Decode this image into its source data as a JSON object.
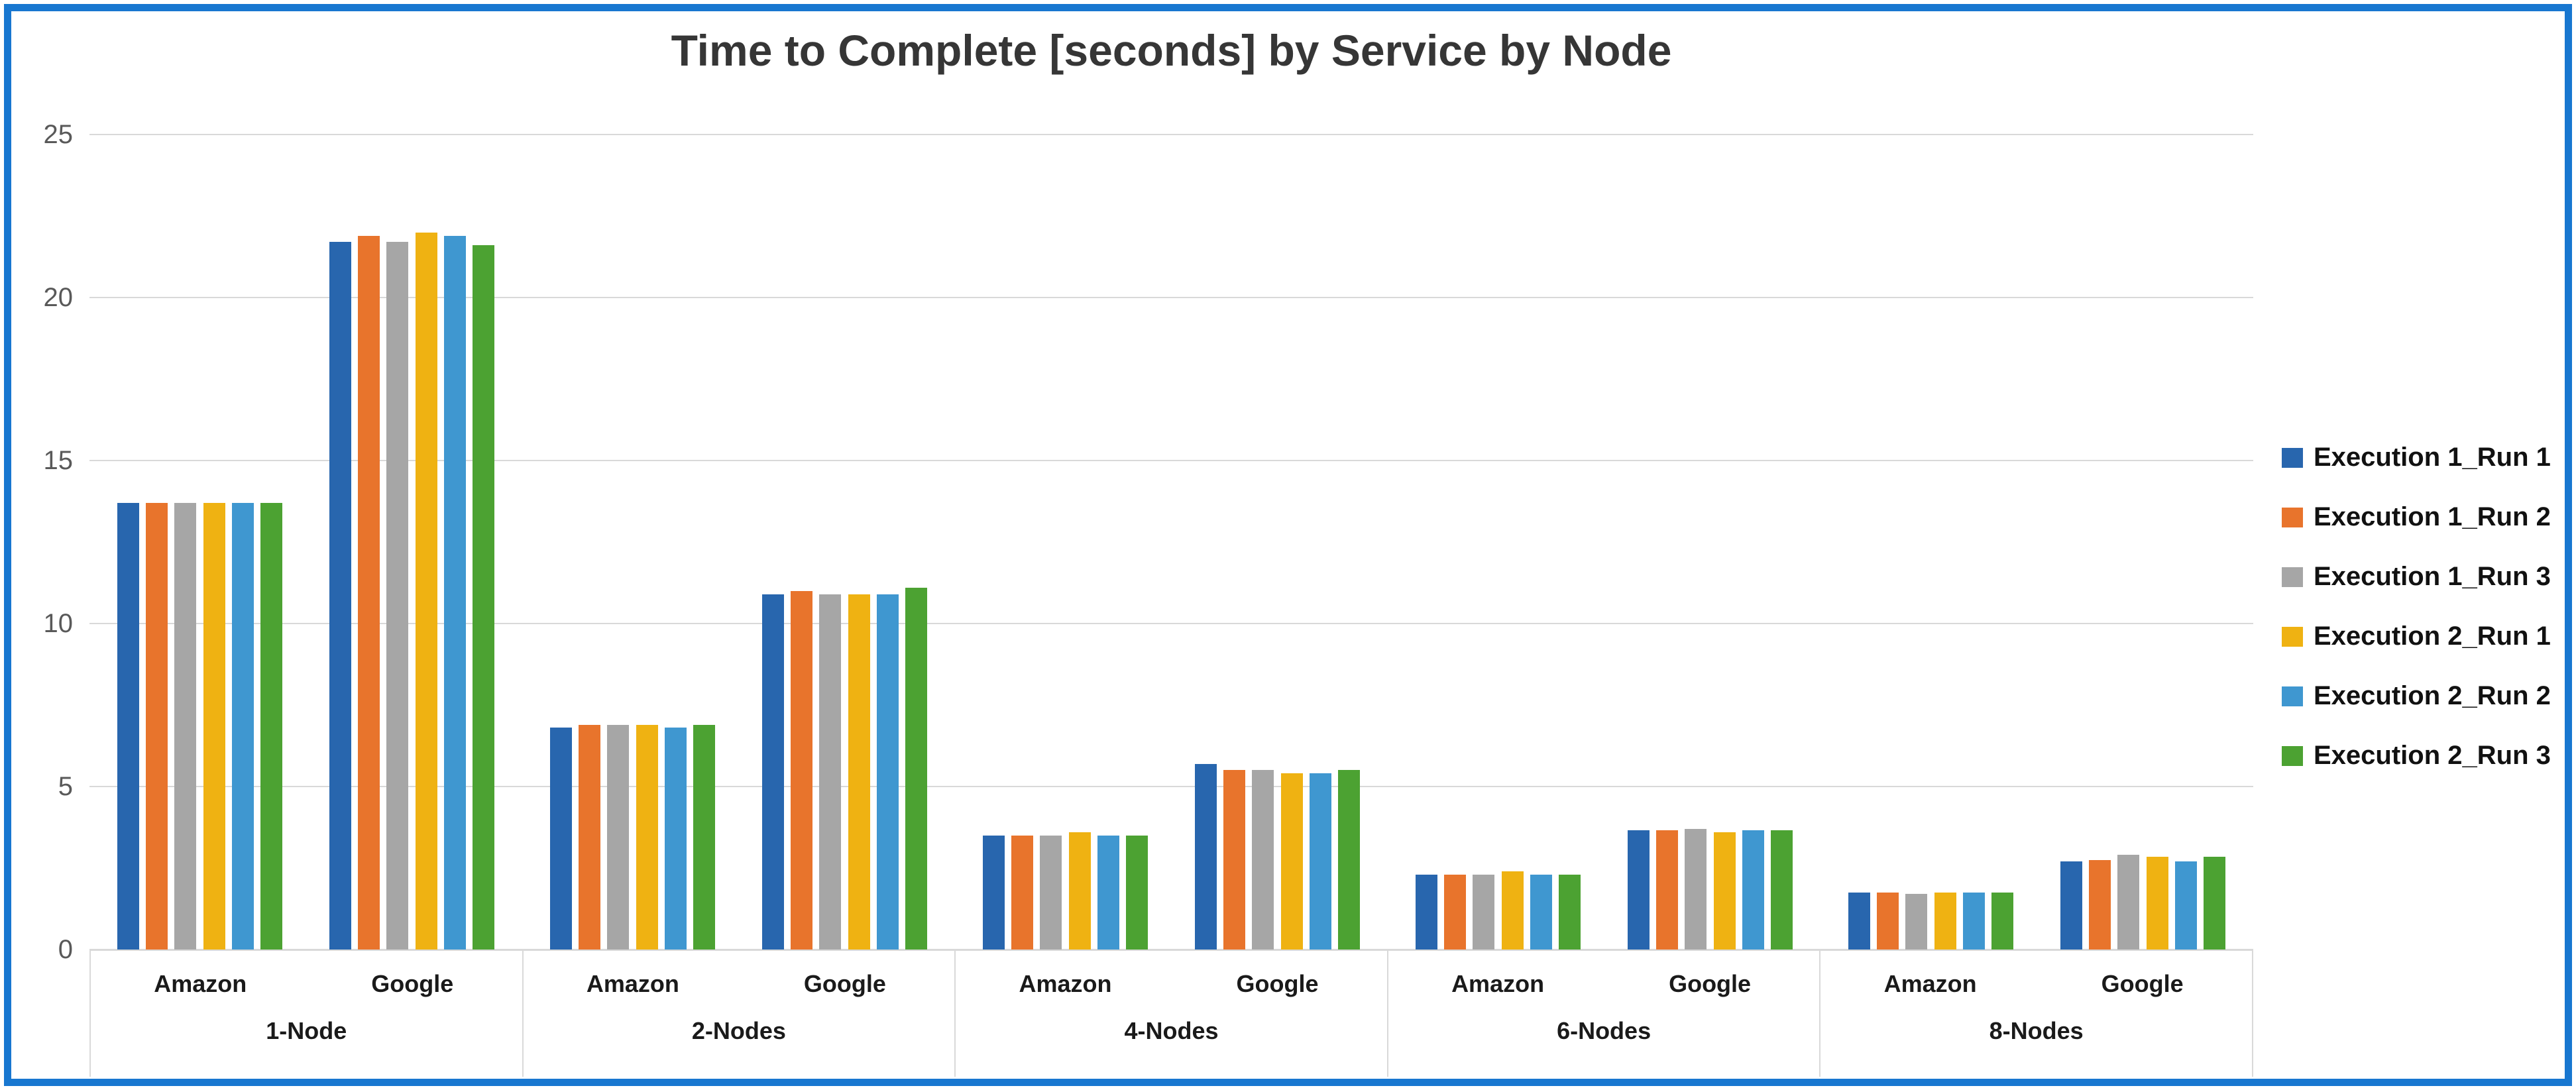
{
  "frame": {
    "border_color": "#1877D0",
    "background": "#FFFFFF"
  },
  "chart_data": {
    "type": "bar",
    "title": "Time to Complete [seconds] by Service by Node",
    "xlabel": "",
    "ylabel": "",
    "ylim": [
      0,
      25
    ],
    "yticks": [
      0,
      5,
      10,
      15,
      20,
      25
    ],
    "grid": "horizontal",
    "gridline_color": "#D9D9D9",
    "tick_label_color": "#595959",
    "legend_position": "right",
    "series": [
      {
        "name": "Execution 1_Run 1",
        "color": "#2866AE"
      },
      {
        "name": "Execution 1_Run 2",
        "color": "#E8742C"
      },
      {
        "name": "Execution 1_Run 3",
        "color": "#A6A6A6"
      },
      {
        "name": "Execution 2_Run 1",
        "color": "#EFB212"
      },
      {
        "name": "Execution 2_Run 2",
        "color": "#3F97D0"
      },
      {
        "name": "Execution 2_Run 3",
        "color": "#4CA232"
      }
    ],
    "groups": [
      {
        "node": "1-Node",
        "clusters": [
          {
            "service": "Amazon",
            "values": [
              13.7,
              13.7,
              13.7,
              13.7,
              13.7,
              13.7
            ]
          },
          {
            "service": "Google",
            "values": [
              21.7,
              21.9,
              21.7,
              22.0,
              21.9,
              21.6
            ]
          }
        ]
      },
      {
        "node": "2-Nodes",
        "clusters": [
          {
            "service": "Amazon",
            "values": [
              6.8,
              6.9,
              6.9,
              6.9,
              6.8,
              6.9
            ]
          },
          {
            "service": "Google",
            "values": [
              10.9,
              11.0,
              10.9,
              10.9,
              10.9,
              11.1
            ]
          }
        ]
      },
      {
        "node": "4-Nodes",
        "clusters": [
          {
            "service": "Amazon",
            "values": [
              3.5,
              3.5,
              3.5,
              3.6,
              3.5,
              3.5
            ]
          },
          {
            "service": "Google",
            "values": [
              5.7,
              5.5,
              5.5,
              5.4,
              5.4,
              5.5
            ]
          }
        ]
      },
      {
        "node": "6-Nodes",
        "clusters": [
          {
            "service": "Amazon",
            "values": [
              2.3,
              2.3,
              2.3,
              2.4,
              2.3,
              2.3
            ]
          },
          {
            "service": "Google",
            "values": [
              3.65,
              3.65,
              3.7,
              3.6,
              3.65,
              3.65
            ]
          }
        ]
      },
      {
        "node": "8-Nodes",
        "clusters": [
          {
            "service": "Amazon",
            "values": [
              1.75,
              1.75,
              1.7,
              1.75,
              1.75,
              1.75
            ]
          },
          {
            "service": "Google",
            "values": [
              2.7,
              2.75,
              2.9,
              2.85,
              2.7,
              2.85
            ]
          }
        ]
      }
    ]
  }
}
